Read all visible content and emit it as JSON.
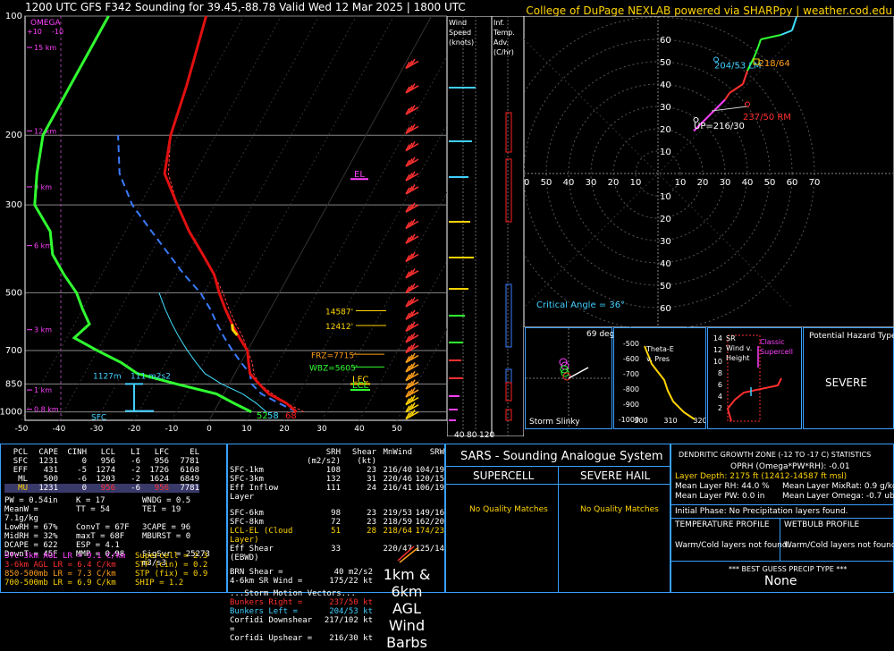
{
  "header": {
    "title": "1200 UTC GFS F342 Sounding for 39.45,-88.78 Valid  Wed 12 Mar 2025 | 1800 UTC",
    "credit": "College of DuPage NEXLAB powered via SHARPpy | weather.cod.edu"
  },
  "chart_data": [
    {
      "type": "line",
      "name": "skew-t",
      "pressure_ticks": [
        100,
        200,
        300,
        500,
        700,
        850,
        1000
      ],
      "pressure_ticks_labels": [
        "100",
        "200",
        "300",
        "500",
        "700",
        "850",
        "1000"
      ],
      "temp_ticks": [
        -50,
        -40,
        -30,
        -20,
        -10,
        0,
        10,
        20,
        30,
        40,
        50
      ],
      "temp_ticks_labels": [
        "-50",
        "-40",
        "-30",
        "-20",
        "-10",
        "0",
        "10",
        "20",
        "30",
        "40",
        "50"
      ],
      "height_labels": [
        {
          "p": 122,
          "label": "15 km"
        },
        {
          "p": 192,
          "label": "12 km"
        },
        {
          "p": 265,
          "label": "9 km"
        },
        {
          "p": 356,
          "label": "6 km"
        },
        {
          "p": 475,
          "label": "3 km"
        },
        {
          "p": 548,
          "label": "1 km"
        },
        {
          "p": 650,
          "label": "SFC"
        }
      ],
      "km_labels": [
        {
          "p": 120,
          "label": "15 km"
        },
        {
          "p": 195,
          "label": "12 km"
        },
        {
          "p": 270,
          "label": "9 km"
        },
        {
          "p": 380,
          "label": "6 km"
        },
        {
          "p": 620,
          "label": "3 km"
        },
        {
          "p": 880,
          "label": "1 km"
        },
        {
          "p": 985,
          "label": "0.8 km"
        }
      ],
      "omega": {
        "label": "OMEGA",
        "ticks": [
          "+10",
          "-10"
        ]
      },
      "temperature": [
        [
          1000,
          22
        ],
        [
          950,
          18
        ],
        [
          900,
          12
        ],
        [
          850,
          8
        ],
        [
          800,
          4
        ],
        [
          750,
          2
        ],
        [
          700,
          0
        ],
        [
          650,
          -4
        ],
        [
          600,
          -8
        ],
        [
          550,
          -12
        ],
        [
          500,
          -16
        ],
        [
          450,
          -20
        ],
        [
          400,
          -26
        ],
        [
          350,
          -33
        ],
        [
          300,
          -40
        ],
        [
          250,
          -48
        ],
        [
          200,
          -52
        ],
        [
          150,
          -55
        ],
        [
          100,
          -60
        ]
      ],
      "dewpoint": [
        [
          1000,
          10
        ],
        [
          950,
          4
        ],
        [
          900,
          -2
        ],
        [
          850,
          -14
        ],
        [
          800,
          -26
        ],
        [
          750,
          -32
        ],
        [
          700,
          -40
        ],
        [
          650,
          -48
        ],
        [
          600,
          -46
        ],
        [
          550,
          -50
        ],
        [
          500,
          -54
        ],
        [
          450,
          -60
        ],
        [
          400,
          -66
        ],
        [
          350,
          -70
        ],
        [
          300,
          -78
        ],
        [
          250,
          -82
        ],
        [
          200,
          -86
        ],
        [
          150,
          -86
        ],
        [
          100,
          -86
        ]
      ],
      "parcel": [
        [
          1000,
          22
        ],
        [
          950,
          16
        ],
        [
          900,
          10
        ],
        [
          850,
          6
        ],
        [
          800,
          4
        ],
        [
          750,
          0
        ],
        [
          700,
          -4
        ],
        [
          650,
          -8
        ],
        [
          600,
          -12
        ],
        [
          550,
          -16
        ],
        [
          500,
          -21
        ],
        [
          450,
          -28
        ],
        [
          400,
          -35
        ],
        [
          350,
          -43
        ],
        [
          300,
          -52
        ],
        [
          250,
          -60
        ],
        [
          200,
          -66
        ]
      ],
      "virtual_temp": [
        [
          1000,
          24
        ],
        [
          950,
          18
        ],
        [
          900,
          13
        ],
        [
          850,
          8
        ],
        [
          800,
          5
        ],
        [
          750,
          3
        ],
        [
          700,
          0
        ],
        [
          650,
          -3
        ],
        [
          600,
          -7
        ],
        [
          550,
          -11
        ],
        [
          500,
          -15
        ],
        [
          450,
          -20
        ],
        [
          400,
          -26
        ],
        [
          350,
          -33
        ],
        [
          300,
          -40
        ],
        [
          250,
          -47
        ],
        [
          200,
          -52
        ],
        [
          150,
          -55
        ],
        [
          100,
          -60
        ]
      ],
      "wetbulb": [
        [
          1000,
          14
        ],
        [
          950,
          10
        ],
        [
          900,
          5
        ],
        [
          850,
          -2
        ],
        [
          800,
          -8
        ],
        [
          750,
          -12
        ],
        [
          700,
          -16
        ],
        [
          650,
          -20
        ],
        [
          600,
          -24
        ],
        [
          550,
          -28
        ],
        [
          500,
          -32
        ]
      ],
      "surface_labels": {
        "dewpoint": "52",
        "wetbulb": "58",
        "temp": "68"
      },
      "markers": {
        "el": "EL",
        "lfc": "LFC",
        "lcl": "LCL",
        "sfc": "SFC",
        "frz": "FRZ=7715'",
        "wbz": "WBZ=5605'",
        "h14587": "14587'",
        "h12412": "12412'",
        "eff_inflow": "1127m",
        "srh": "111 m2s2"
      }
    },
    {
      "type": "line",
      "name": "hodograph",
      "rings": [
        10,
        20,
        30,
        40,
        50,
        60,
        70
      ],
      "rings_labels": [
        "10",
        "20",
        "30",
        "40",
        "50",
        "60",
        "70"
      ],
      "axis_labels": [
        "70",
        "60",
        "50",
        "40",
        "30",
        "20",
        "10"
      ],
      "points": [
        [
          16,
          19
        ],
        [
          20,
          23
        ],
        [
          25,
          28
        ],
        [
          30,
          33
        ],
        [
          32,
          36
        ],
        [
          38,
          40
        ],
        [
          40,
          46
        ],
        [
          43,
          52
        ],
        [
          45,
          57
        ],
        [
          46,
          60
        ],
        [
          55,
          62
        ],
        [
          60,
          64
        ],
        [
          62,
          70
        ]
      ],
      "labels": {
        "bunkers_left": "204/53 LM",
        "mean": "218/64",
        "bunkers_right": "237/50 RM",
        "upshear": "UP=216/30",
        "critical_angle": "Critical Angle = 36°"
      }
    }
  ],
  "wind_speed_panel": {
    "title": "Wind Speed (knots)",
    "ticks": [
      "40",
      "80",
      "120"
    ]
  },
  "inf_temp_panel": {
    "title": "Inf. Temp. Adv.(C/hr)"
  },
  "storm_slinky": {
    "label": "Storm Slinky",
    "angle": "69 deg"
  },
  "thetae_panel": {
    "title": "Theta-E v. Pres",
    "x_ticks": [
      "300",
      "310",
      "320"
    ],
    "y_ticks": [
      "-500",
      "-600",
      "-700",
      "-800",
      "-900",
      "-1000"
    ]
  },
  "srwind_panel": {
    "title": "SR Wind v. Height",
    "legend": "Classic Supercell",
    "y_ticks": [
      "14",
      "12",
      "10",
      "8",
      "6",
      "4",
      "2"
    ]
  },
  "hazard": {
    "title": "Potential Hazard Type",
    "value": "SEVERE"
  },
  "parcels": {
    "headers": [
      "PCL",
      "CAPE",
      "CINH",
      "LCL",
      "LI",
      "LFC",
      "EL"
    ],
    "rows": [
      [
        "SFC",
        "1231",
        "0",
        "956",
        "-6",
        "956",
        "7781"
      ],
      [
        "EFF",
        "431",
        "-5",
        "1274",
        "-2",
        "1726",
        "6168"
      ],
      [
        "ML",
        "500",
        "-6",
        "1203",
        "-2",
        "1624",
        "6849"
      ],
      [
        "MU",
        "1231",
        "0",
        "956",
        "-6",
        "956",
        "7781"
      ]
    ]
  },
  "indices": [
    [
      "PW = 0.54in",
      "K = 17",
      "WNDG = 0.5"
    ],
    [
      "MeanW = 7.1g/kg",
      "TT = 54",
      "TEI = 19"
    ],
    [
      "LowRH = 67%",
      "ConvT = 67F",
      "3CAPE = 96"
    ],
    [
      "MidRH = 32%",
      "maxT = 68F",
      "MBURST = 0"
    ],
    [
      "DCAPE = 622",
      "ESP = 4.1",
      ""
    ],
    [
      "DownT = 45F",
      "MMP = 0.98",
      "SigSvr = 25273 m3/s3"
    ]
  ],
  "lapse_rates": [
    {
      "label": "Sfc-3km AGL LR = 9.1 C/km",
      "color": "#ff40ff"
    },
    {
      "label": "3-6km AGL LR = 6.4 C/km",
      "color": "#ff3030"
    },
    {
      "label": "850-500mb LR = 7.3 C/km",
      "color": "#ff9f1a"
    },
    {
      "label": "700-500mb LR = 6.9 C/km",
      "color": "#ffd400"
    }
  ],
  "composites": [
    {
      "label": "Supercell = 2.3",
      "color": "#ffd400"
    },
    {
      "label": "STP (cin) = 0.2",
      "color": "#ffd400"
    },
    {
      "label": "STP (fix) = 0.9",
      "color": "#ffd400"
    },
    {
      "label": "SHIP = 1.2",
      "color": "#ffd400"
    }
  ],
  "kinematics": {
    "headers": [
      "SRH (m2/s2)",
      "Shear (kt)",
      "MnWind",
      "SRW"
    ],
    "rows": [
      {
        "label": "SFC-1km",
        "v": [
          "108",
          "23",
          "216/40",
          "104/19"
        ],
        "color": "#ffffff"
      },
      {
        "label": "SFC-3km",
        "v": [
          "132",
          "31",
          "220/46",
          "120/15"
        ],
        "color": "#ffffff"
      },
      {
        "label": "Eff Inflow Layer",
        "v": [
          "111",
          "24",
          "216/41",
          "106/19"
        ],
        "color": "#ffffff"
      },
      {
        "label": "SFC-6km",
        "v": [
          "98",
          "23",
          "219/53",
          "149/16"
        ],
        "color": "#ffffff"
      },
      {
        "label": "SFC-8km",
        "v": [
          "72",
          "23",
          "218/59",
          "162/20"
        ],
        "color": "#ffffff"
      },
      {
        "label": "LCL-EL (Cloud Layer)",
        "v": [
          "51",
          "28",
          "218/64",
          "174/23"
        ],
        "color": "#ffd400"
      },
      {
        "label": "Eff Shear (EBWD)",
        "v": [
          "33",
          "",
          "220/47",
          "125/14"
        ],
        "color": "#ffffff"
      }
    ],
    "brn": "BRN Shear =",
    "brn_val": "40 m2/s2",
    "sr46": "4-6km SR Wind =",
    "sr46_val": "175/22 kt",
    "smv_title": "...Storm Motion Vectors...",
    "smv": [
      {
        "label": "Bunkers Right =",
        "val": "237/50 kt",
        "color": "#ff3030"
      },
      {
        "label": "Bunkers Left =",
        "val": "204/53 kt",
        "color": "#40d0ff"
      },
      {
        "label": "Corfidi Downshear =",
        "val": "217/102 kt",
        "color": "#ffffff"
      },
      {
        "label": "Corfidi Upshear =",
        "val": "216/30 kt",
        "color": "#ffffff"
      }
    ],
    "barb_legend": "1km & 6km AGL Wind Barbs"
  },
  "sars": {
    "title": "SARS - Sounding Analogue System",
    "supercell": "SUPERCELL",
    "hail": "SEVERE HAIL",
    "sc_match": "No Quality Matches",
    "hail_match": "No Quality Matches"
  },
  "dgz": {
    "title": "DENDRITIC GROWTH ZONE (-12 TO -17 C) STATISTICS",
    "oprh": "OPRH (Omega*PW*RH): -0.01",
    "depth": "Layer Depth: 2175 ft (12412-14587 ft msl)",
    "rh": "Mean Layer RH: 44.0 %",
    "mixrat": "Mean Layer MixRat: 0.9 g/kg",
    "pw": "Mean Layer PW: 0.0 in",
    "omega": "Mean Layer Omega: -0.7 ub/s",
    "initial_phase": "Initial Phase:  No Precipitation layers found.",
    "temp_profile_title": "TEMPERATURE PROFILE",
    "wetbulb_profile_title": "WETBULB PROFILE",
    "temp_profile": "Warm/Cold layers not found.",
    "wetbulb_profile": "Warm/Cold layers not found.",
    "best_guess_title": "*** BEST GUESS PRECIP TYPE ***",
    "best_guess": "None"
  },
  "colors": {
    "accent": "#3aa0ff",
    "temp": "#ff2020",
    "dew": "#30ff30",
    "parcel": "#ffffff",
    "wetbulb": "#40e0ff",
    "mixing": "#ff40ff"
  }
}
